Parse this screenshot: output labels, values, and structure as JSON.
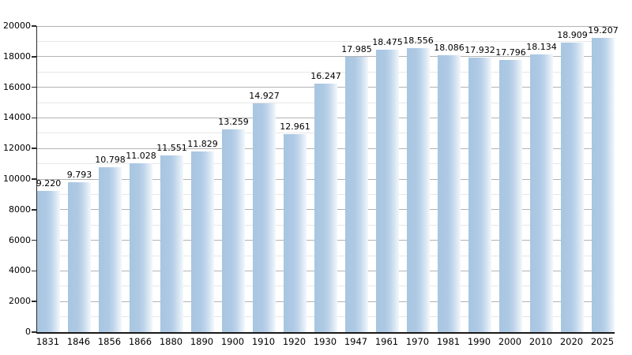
{
  "chart_data": {
    "type": "bar",
    "title": "",
    "xlabel": "",
    "ylabel": "",
    "categories": [
      "1831",
      "1846",
      "1856",
      "1866",
      "1880",
      "1890",
      "1900",
      "1910",
      "1920",
      "1930",
      "1947",
      "1961",
      "1970",
      "1981",
      "1990",
      "2000",
      "2010",
      "2020",
      "2025"
    ],
    "values": [
      9220,
      9793,
      10798,
      11028,
      11551,
      11829,
      13259,
      14927,
      12961,
      16247,
      17985,
      18475,
      18556,
      18086,
      17932,
      17796,
      18134,
      18909,
      19207
    ],
    "value_labels": [
      "9.220",
      "9.793",
      "10.798",
      "11.028",
      "11.551",
      "11.829",
      "13.259",
      "14.927",
      "12.961",
      "16.247",
      "17.985",
      "18.475",
      "18.556",
      "18.086",
      "17.932",
      "17.796",
      "18.134",
      "18.909",
      "19.207"
    ],
    "ylim": [
      0,
      20000
    ],
    "ytick_step": 2000,
    "yminor_step": 1000,
    "ytick_labels": [
      "0",
      "2000",
      "4000",
      "6000",
      "8000",
      "10000",
      "12000",
      "14000",
      "16000",
      "18000",
      "20000"
    ],
    "grid": "on",
    "legend": "none",
    "colors": {
      "bar_fill_start": "#a8c6e1",
      "bar_fill_end": "#f3f8fc",
      "gridline_major": "#b3b3b3",
      "gridline_minor": "#e7e7e7",
      "axis": "#1a1a1a",
      "text": "#000000",
      "background": "#ffffff"
    }
  }
}
